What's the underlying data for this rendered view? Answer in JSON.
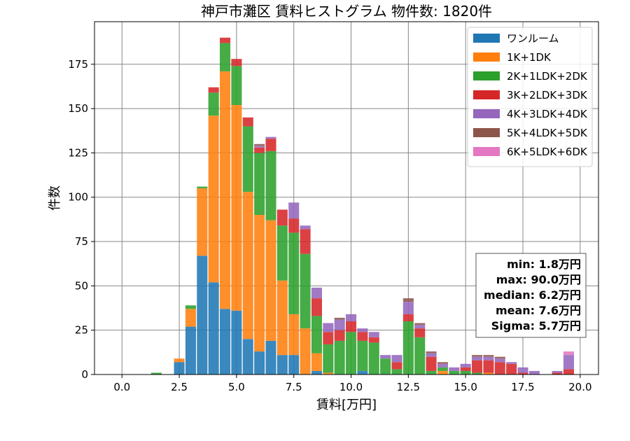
{
  "chart_data": {
    "type": "bar",
    "stacked": true,
    "title": "神戸市灘区 賃料ヒストグラム 物件数: 1820件",
    "xlabel": "賃料[万円]",
    "ylabel": "件数",
    "xlim": [
      -1.2,
      20.8
    ],
    "ylim": [
      0,
      199
    ],
    "xticks": [
      0.0,
      2.5,
      5.0,
      7.5,
      10.0,
      12.5,
      15.0,
      17.5,
      20.0
    ],
    "xtick_labels": [
      "0.0",
      "2.5",
      "5.0",
      "7.5",
      "10.0",
      "12.5",
      "15.0",
      "17.5",
      "20.0"
    ],
    "yticks": [
      0,
      25,
      50,
      75,
      100,
      125,
      150,
      175
    ],
    "ytick_labels": [
      "0",
      "25",
      "50",
      "75",
      "100",
      "125",
      "150",
      "175"
    ],
    "grid": true,
    "legend_position": "top-right",
    "bin_width": 0.5,
    "bin_centers": [
      1.5,
      2.0,
      2.5,
      3.0,
      3.5,
      4.0,
      4.5,
      5.0,
      5.5,
      6.0,
      6.5,
      7.0,
      7.5,
      8.0,
      8.5,
      9.0,
      9.5,
      10.0,
      10.5,
      11.0,
      11.5,
      12.0,
      12.5,
      13.0,
      13.5,
      14.0,
      14.5,
      15.0,
      15.5,
      16.0,
      16.5,
      17.0,
      17.5,
      18.0,
      18.5,
      19.0,
      19.5
    ],
    "series": [
      {
        "name": "ワンルーム",
        "color": "#1f77b4",
        "values": [
          0,
          0,
          7,
          27,
          67,
          52,
          37,
          36,
          20,
          13,
          19,
          11,
          11,
          0,
          2,
          0,
          0,
          0,
          2,
          0,
          0,
          0,
          0,
          0,
          0,
          0,
          0,
          0,
          0,
          0,
          0,
          0,
          0,
          0,
          0,
          0,
          0
        ]
      },
      {
        "name": "1K+1DK",
        "color": "#ff7f0e",
        "values": [
          0,
          0,
          2,
          10,
          38,
          94,
          134,
          116,
          83,
          77,
          68,
          42,
          23,
          26,
          10,
          1,
          0,
          0,
          0,
          0,
          0,
          0,
          0,
          0,
          0,
          2,
          0,
          0,
          0,
          1,
          0,
          0,
          0,
          0,
          0,
          0,
          0
        ]
      },
      {
        "name": "2K+1LDK+2DK",
        "color": "#2ca02c",
        "values": [
          1,
          0,
          0,
          2,
          1,
          13,
          16,
          22,
          37,
          35,
          39,
          31,
          46,
          42,
          21,
          16,
          19,
          24,
          17,
          18,
          9,
          3,
          30,
          21,
          2,
          2,
          2,
          2,
          1,
          0,
          0,
          0,
          0,
          0,
          0,
          0,
          0
        ]
      },
      {
        "name": "3K+2LDK+3DK",
        "color": "#d62728",
        "values": [
          0,
          0,
          0,
          0,
          0,
          3,
          3,
          4,
          5,
          3,
          7,
          9,
          8,
          14,
          10,
          7,
          6,
          6,
          5,
          3,
          0,
          4,
          4,
          5,
          8,
          0,
          0,
          2,
          7,
          7,
          7,
          6,
          1,
          0,
          0,
          1,
          3
        ]
      },
      {
        "name": "4K+3LDK+4DK",
        "color": "#9467bd",
        "values": [
          0,
          0,
          0,
          0,
          0,
          0,
          0,
          0,
          0,
          1,
          1,
          0,
          9,
          2,
          6,
          5,
          6,
          4,
          2,
          3,
          2,
          4,
          7,
          2,
          2,
          2,
          2,
          2,
          2,
          2,
          2,
          1,
          3,
          2,
          0,
          1,
          8
        ]
      },
      {
        "name": "5K+4LDK+5DK",
        "color": "#8c564b",
        "values": [
          0,
          0,
          0,
          0,
          0,
          0,
          0,
          0,
          0,
          1,
          0,
          0,
          0,
          0,
          0,
          0,
          1,
          0,
          0,
          0,
          0,
          0,
          2,
          1,
          1,
          1,
          0,
          0,
          1,
          1,
          1,
          0,
          0,
          0,
          0,
          0,
          0
        ]
      },
      {
        "name": "6K+5LDK+6DK",
        "color": "#e377c2",
        "values": [
          0,
          0,
          0,
          0,
          0,
          0,
          0,
          0,
          0,
          0,
          0,
          0,
          0,
          0,
          0,
          0,
          0,
          0,
          0,
          0,
          0,
          0,
          0,
          0,
          0,
          0,
          0,
          0,
          0,
          0,
          0,
          0,
          0,
          0,
          0,
          0,
          2
        ]
      }
    ],
    "stats": [
      "min: 1.8万円",
      "max: 90.0万円",
      "median: 6.2万円",
      "mean: 7.6万円",
      "Sigma: 5.7万円"
    ]
  }
}
